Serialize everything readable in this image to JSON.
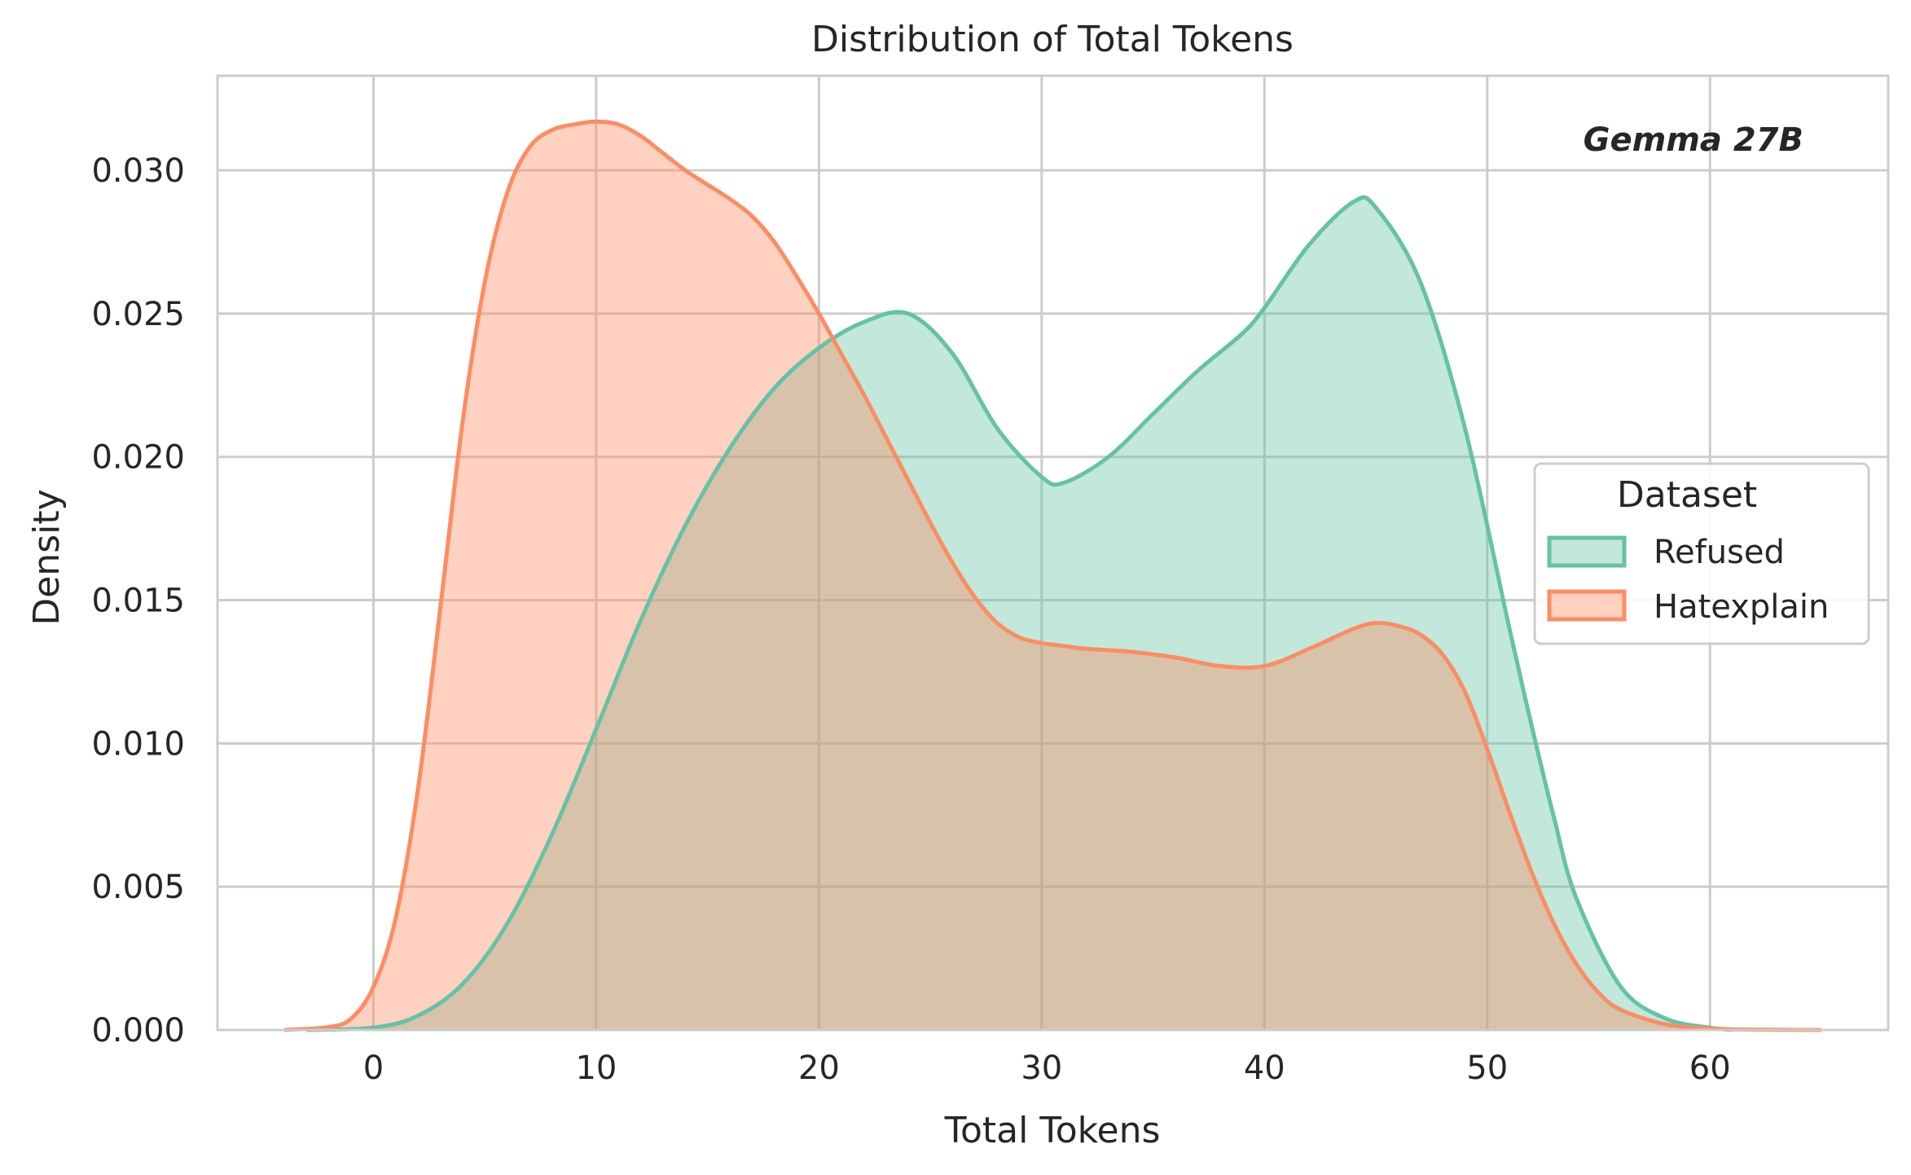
{
  "chart_data": {
    "type": "area",
    "title": "Distribution of Total Tokens",
    "xlabel": "Total Tokens",
    "ylabel": "Density",
    "annotation": "Gemma 27B",
    "xlim": [
      -7,
      68
    ],
    "ylim": [
      0,
      0.0333
    ],
    "xticks": [
      0,
      10,
      20,
      30,
      40,
      50,
      60
    ],
    "xtick_labels": [
      "0",
      "10",
      "20",
      "30",
      "40",
      "50",
      "60"
    ],
    "yticks": [
      0,
      0.005,
      0.01,
      0.015,
      0.02,
      0.025,
      0.03
    ],
    "ytick_labels": [
      "0.000",
      "0.005",
      "0.010",
      "0.015",
      "0.020",
      "0.025",
      "0.030"
    ],
    "grid": true,
    "legend": {
      "title": "Dataset",
      "placement": "center-right"
    },
    "series": [
      {
        "name": "Refused",
        "color": "#66c2a5",
        "x": [
          -3,
          0,
          2,
          4,
          6,
          8,
          10,
          12,
          14,
          16,
          18,
          20,
          22,
          24,
          26,
          28,
          30,
          31,
          33,
          35,
          37,
          39,
          40,
          42,
          44,
          45,
          47,
          49,
          51,
          52,
          53,
          54,
          56,
          58,
          60,
          61
        ],
        "y": [
          0.0,
          8e-05,
          0.0005,
          0.0016,
          0.0037,
          0.0068,
          0.0105,
          0.0143,
          0.0176,
          0.0203,
          0.0224,
          0.0238,
          0.0247,
          0.025,
          0.0236,
          0.021,
          0.0193,
          0.0191,
          0.02,
          0.0215,
          0.023,
          0.0243,
          0.0252,
          0.0274,
          0.0289,
          0.0287,
          0.0261,
          0.021,
          0.014,
          0.0106,
          0.0074,
          0.0046,
          0.0015,
          0.0004,
          8e-05,
          0.0
        ]
      },
      {
        "name": "Hatexplain",
        "color": "#fc8d62",
        "x": [
          -4,
          -2,
          -1,
          0,
          1,
          2,
          3,
          4,
          5,
          6,
          7,
          8,
          9,
          10,
          11,
          12,
          13,
          14,
          15,
          16,
          17,
          18,
          19,
          20,
          21,
          22,
          23,
          24,
          25,
          26,
          27,
          28,
          29,
          30,
          31,
          32,
          34,
          36,
          38,
          40,
          42,
          44,
          45,
          46,
          47,
          48,
          49,
          50,
          51,
          52,
          53,
          54,
          55,
          56,
          58,
          60,
          62,
          65
        ],
        "y": [
          0.0,
          0.0001,
          0.0004,
          0.0015,
          0.0039,
          0.0084,
          0.0147,
          0.0212,
          0.0261,
          0.0292,
          0.0308,
          0.0314,
          0.0316,
          0.0317,
          0.0316,
          0.0312,
          0.0306,
          0.03,
          0.0295,
          0.029,
          0.0284,
          0.0275,
          0.0263,
          0.025,
          0.0236,
          0.0222,
          0.0207,
          0.0192,
          0.0177,
          0.0163,
          0.0151,
          0.0142,
          0.0137,
          0.0135,
          0.0134,
          0.0133,
          0.0132,
          0.013,
          0.0127,
          0.0127,
          0.0133,
          0.014,
          0.0142,
          0.0141,
          0.0138,
          0.0131,
          0.0118,
          0.0098,
          0.0076,
          0.0055,
          0.0037,
          0.0023,
          0.0013,
          0.0007,
          0.0002,
          5e-05,
          1e-05,
          0.0
        ]
      }
    ]
  }
}
